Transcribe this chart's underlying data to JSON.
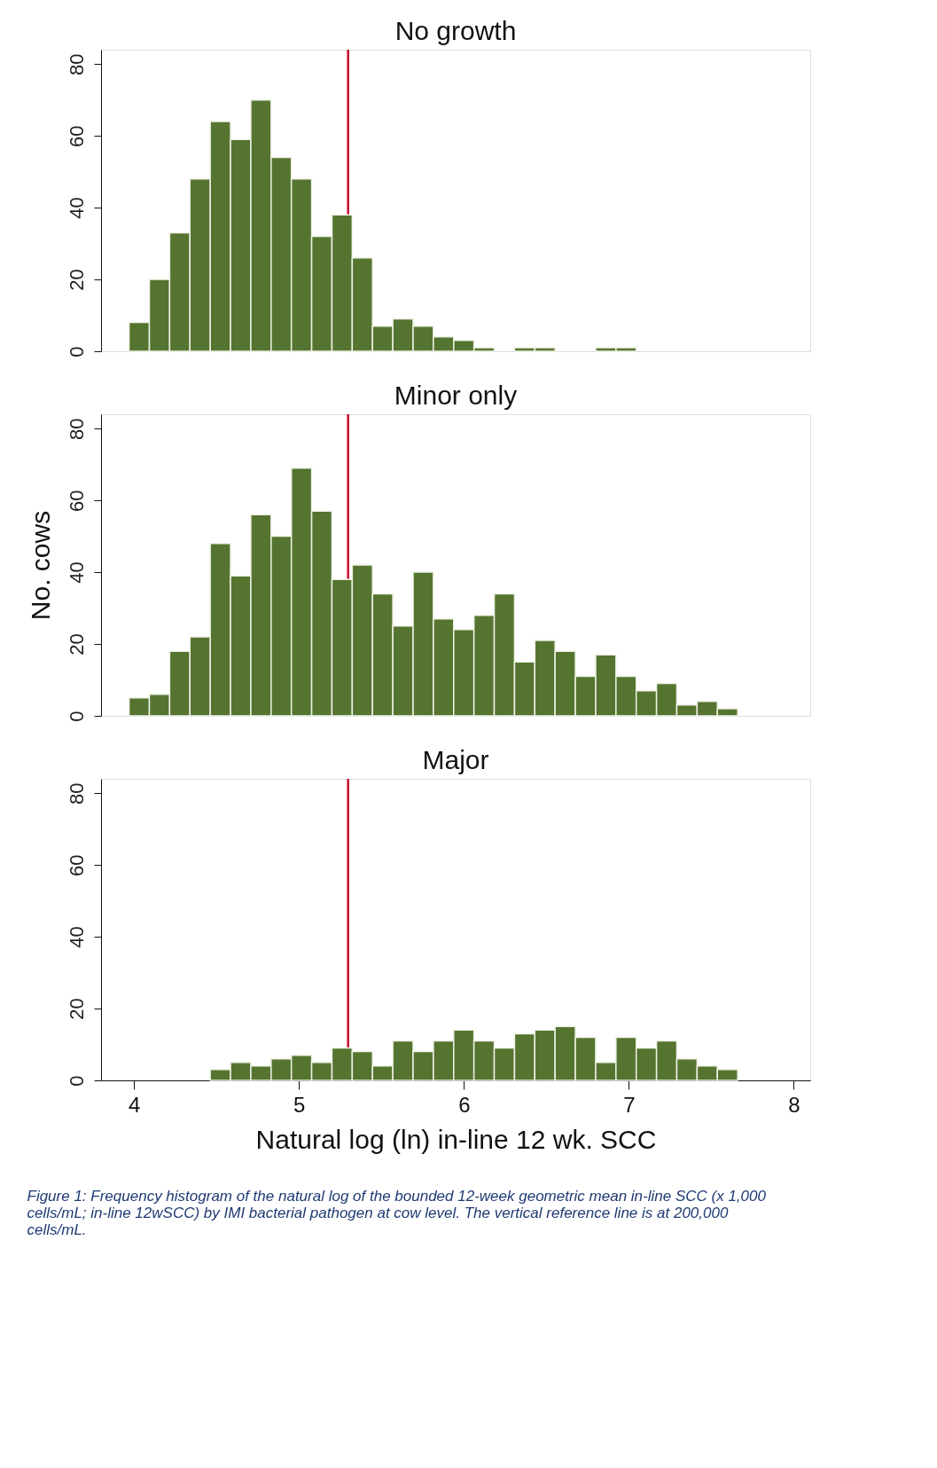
{
  "chart_data": [
    {
      "type": "histogram",
      "title": "No growth",
      "bins": [
        3.97,
        4.093,
        4.216,
        4.339,
        4.462,
        4.585,
        4.708,
        4.831,
        4.954,
        5.077,
        5.2,
        5.323,
        5.446,
        5.569,
        5.692,
        5.815,
        5.938,
        6.061,
        6.184,
        6.307,
        6.43,
        6.553,
        6.676,
        6.799,
        6.922,
        7.045,
        7.168,
        7.291,
        7.414,
        7.537,
        7.66
      ],
      "values": [
        8,
        20,
        33,
        48,
        64,
        59,
        70,
        54,
        48,
        32,
        38,
        26,
        7,
        9,
        7,
        4,
        3,
        1,
        null,
        1,
        1,
        null,
        null,
        1,
        1,
        null,
        null,
        null,
        null,
        null
      ],
      "color": "#55742f",
      "xlim": [
        3.8,
        8.1
      ],
      "ylim": [
        0,
        84
      ],
      "yticks": [
        0,
        20,
        40,
        60,
        80
      ],
      "tick_labels": "y",
      "grid": false,
      "ref_lines": [
        {
          "axis": "x",
          "value": 5.298,
          "color": "#c8102e"
        }
      ]
    },
    {
      "type": "histogram",
      "title": "Minor only",
      "ylabel": "No. cows",
      "bins": [
        3.97,
        4.093,
        4.216,
        4.339,
        4.462,
        4.585,
        4.708,
        4.831,
        4.954,
        5.077,
        5.2,
        5.323,
        5.446,
        5.569,
        5.692,
        5.815,
        5.938,
        6.061,
        6.184,
        6.307,
        6.43,
        6.553,
        6.676,
        6.799,
        6.922,
        7.045,
        7.168,
        7.291,
        7.414,
        7.537,
        7.66
      ],
      "values": [
        5,
        6,
        18,
        22,
        48,
        39,
        56,
        50,
        69,
        57,
        38,
        42,
        34,
        25,
        40,
        27,
        24,
        28,
        34,
        15,
        21,
        18,
        11,
        17,
        11,
        7,
        9,
        3,
        4,
        2
      ],
      "color": "#55742f",
      "xlim": [
        3.8,
        8.1
      ],
      "ylim": [
        0,
        84
      ],
      "yticks": [
        0,
        20,
        40,
        60,
        80
      ],
      "tick_labels": "y",
      "grid": false,
      "ref_lines": [
        {
          "axis": "x",
          "value": 5.298,
          "color": "#c8102e"
        }
      ]
    },
    {
      "type": "histogram",
      "title": "Major",
      "xlabel": "Natural log (ln) in-line 12 wk. SCC",
      "bins": [
        3.97,
        4.093,
        4.216,
        4.339,
        4.462,
        4.585,
        4.708,
        4.831,
        4.954,
        5.077,
        5.2,
        5.323,
        5.446,
        5.569,
        5.692,
        5.815,
        5.938,
        6.061,
        6.184,
        6.307,
        6.43,
        6.553,
        6.676,
        6.799,
        6.922,
        7.045,
        7.168,
        7.291,
        7.414,
        7.537,
        7.66
      ],
      "values": [
        null,
        null,
        null,
        null,
        3,
        5,
        4,
        6,
        7,
        5,
        9,
        8,
        4,
        11,
        8,
        11,
        14,
        11,
        9,
        13,
        14,
        15,
        12,
        5,
        12,
        9,
        11,
        6,
        4,
        3
      ],
      "color": "#55742f",
      "xlim": [
        3.8,
        8.1
      ],
      "ylim": [
        0,
        84
      ],
      "yticks": [
        0,
        20,
        40,
        60,
        80
      ],
      "xticks": [
        4,
        5,
        6,
        7,
        8
      ],
      "grid": false,
      "ref_lines": [
        {
          "axis": "x",
          "value": 5.298,
          "color": "#c8102e"
        }
      ],
      "annotations": [
        "Figure 1: Frequency histogram of the natural log of the bounded 12-week geometric mean in-line SCC (x 1,000 cells/mL; in-line 12wSCC) by IMI bacterial pathogen at cow level. The vertical reference line is at 200,000 cells/mL."
      ]
    }
  ]
}
